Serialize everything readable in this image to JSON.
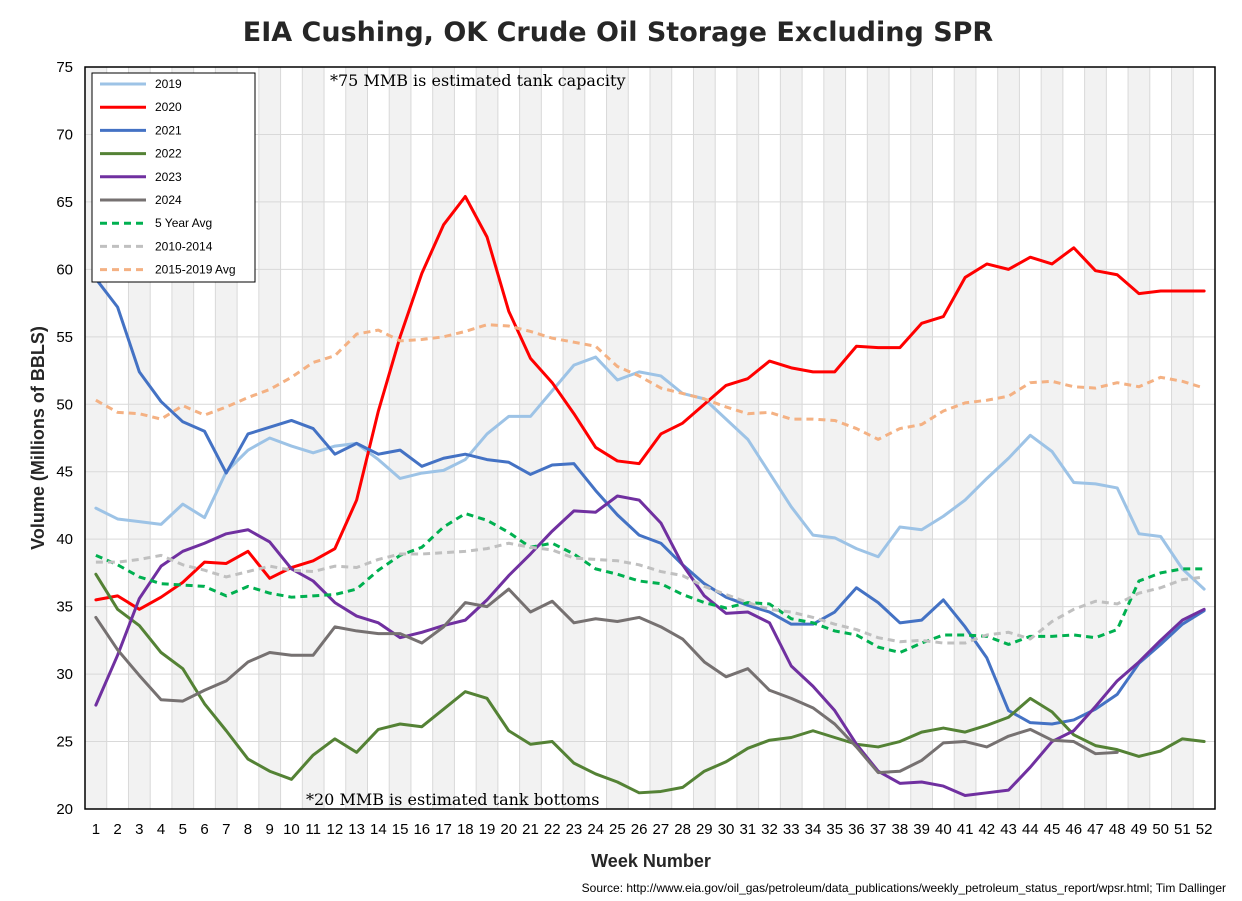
{
  "chart_data": {
    "type": "line",
    "title": "EIA Cushing, OK Crude Oil Storage Excluding SPR",
    "xlabel": "Week Number",
    "ylabel": "Volume (Millions of BBLS)",
    "xlim": [
      1,
      52
    ],
    "ylim": [
      20,
      75
    ],
    "yticks": [
      20,
      25,
      30,
      35,
      40,
      45,
      50,
      55,
      60,
      65,
      70,
      75
    ],
    "x": [
      1,
      2,
      3,
      4,
      5,
      6,
      7,
      8,
      9,
      10,
      11,
      12,
      13,
      14,
      15,
      16,
      17,
      18,
      19,
      20,
      21,
      22,
      23,
      24,
      25,
      26,
      27,
      28,
      29,
      30,
      31,
      32,
      33,
      34,
      35,
      36,
      37,
      38,
      39,
      40,
      41,
      42,
      43,
      44,
      45,
      46,
      47,
      48,
      49,
      50,
      51,
      52
    ],
    "grid": true,
    "legend_position": "top-left",
    "series": [
      {
        "name": "2019",
        "color": "#9dc3e6",
        "dash": "solid",
        "values": [
          42.3,
          41.5,
          41.3,
          41.1,
          42.6,
          41.6,
          45.0,
          46.6,
          47.5,
          46.9,
          46.4,
          46.9,
          47.1,
          45.9,
          44.5,
          44.9,
          45.1,
          45.9,
          47.8,
          49.1,
          49.1,
          51.0,
          52.9,
          53.5,
          51.8,
          52.4,
          52.1,
          50.8,
          50.4,
          48.9,
          47.4,
          44.9,
          42.4,
          40.3,
          40.1,
          39.3,
          38.7,
          40.9,
          40.7,
          41.7,
          42.9,
          44.5,
          46.0,
          47.7,
          46.5,
          44.2,
          44.1,
          43.8,
          40.4,
          40.2,
          37.8,
          36.3
        ]
      },
      {
        "name": "2020",
        "color": "#ff0000",
        "dash": "solid",
        "values": [
          35.5,
          35.8,
          34.8,
          35.7,
          36.8,
          38.3,
          38.2,
          39.1,
          37.1,
          37.9,
          38.4,
          39.3,
          42.9,
          49.5,
          55.0,
          59.7,
          63.3,
          65.4,
          62.4,
          56.9,
          53.4,
          51.6,
          49.3,
          46.8,
          45.8,
          45.6,
          47.8,
          48.6,
          50.0,
          51.4,
          51.9,
          53.2,
          52.7,
          52.4,
          52.4,
          54.3,
          54.2,
          54.2,
          56.0,
          56.5,
          59.4,
          60.4,
          60.0,
          60.9,
          60.4,
          61.6,
          59.9,
          59.6,
          58.2,
          58.4,
          58.4,
          58.4
        ]
      },
      {
        "name": "2021",
        "color": "#4472c4",
        "dash": "solid",
        "values": [
          59.3,
          57.2,
          52.4,
          50.2,
          48.7,
          48.0,
          44.9,
          47.8,
          48.3,
          48.8,
          48.2,
          46.3,
          47.1,
          46.3,
          46.6,
          45.4,
          46.0,
          46.3,
          45.9,
          45.7,
          44.8,
          45.5,
          45.6,
          43.6,
          41.8,
          40.3,
          39.7,
          38.1,
          36.7,
          35.7,
          35.1,
          34.6,
          33.7,
          33.7,
          34.6,
          36.4,
          35.3,
          33.8,
          34.0,
          35.5,
          33.5,
          31.2,
          27.3,
          26.4,
          26.3,
          26.6,
          27.4,
          28.5,
          30.8,
          32.2,
          33.7,
          34.7
        ]
      },
      {
        "name": "2022",
        "color": "#548235",
        "dash": "solid",
        "values": [
          37.4,
          34.8,
          33.6,
          31.6,
          30.4,
          27.8,
          25.8,
          23.7,
          22.8,
          22.2,
          24.0,
          25.2,
          24.2,
          25.9,
          26.3,
          26.1,
          27.4,
          28.7,
          28.2,
          25.8,
          24.8,
          25.0,
          23.4,
          22.6,
          22.0,
          21.2,
          21.3,
          21.6,
          22.8,
          23.5,
          24.5,
          25.1,
          25.3,
          25.8,
          25.3,
          24.8,
          24.6,
          25.0,
          25.7,
          26.0,
          25.7,
          26.2,
          26.8,
          28.2,
          27.2,
          25.5,
          24.7,
          24.4,
          23.9,
          24.3,
          25.2,
          25.0
        ]
      },
      {
        "name": "2023",
        "color": "#7030a0",
        "dash": "solid",
        "values": [
          27.7,
          31.4,
          35.6,
          38.0,
          39.1,
          39.7,
          40.4,
          40.7,
          39.8,
          37.8,
          36.9,
          35.3,
          34.3,
          33.8,
          32.7,
          33.1,
          33.6,
          34.0,
          35.5,
          37.3,
          38.9,
          40.6,
          42.1,
          42.0,
          43.2,
          42.9,
          41.2,
          38.1,
          35.8,
          34.5,
          34.6,
          33.8,
          30.6,
          29.1,
          27.3,
          24.8,
          22.8,
          21.9,
          22.0,
          21.7,
          21.0,
          21.2,
          21.4,
          23.1,
          25.0,
          25.8,
          27.6,
          29.5,
          30.9,
          32.5,
          34.0,
          34.8
        ]
      },
      {
        "name": "2024",
        "color": "#767171",
        "dash": "solid",
        "values": [
          34.2,
          31.8,
          29.9,
          28.1,
          28.0,
          28.8,
          29.5,
          30.9,
          31.6,
          31.4,
          31.4,
          33.5,
          33.2,
          33.0,
          33.0,
          32.3,
          33.5,
          35.3,
          35.0,
          36.3,
          34.6,
          35.4,
          33.8,
          34.1,
          33.9,
          34.2,
          33.5,
          32.6,
          30.9,
          29.8,
          30.4,
          28.8,
          28.2,
          27.5,
          26.3,
          24.6,
          22.7,
          22.8,
          23.6,
          24.9,
          25.0,
          24.6,
          25.4,
          25.9,
          25.1,
          25.0,
          24.1,
          24.2,
          null,
          null,
          null,
          null
        ]
      },
      {
        "name": "5 Year Avg",
        "color": "#00b050",
        "dash": "dashed",
        "values": [
          38.8,
          38.1,
          37.2,
          36.7,
          36.6,
          36.5,
          35.8,
          36.5,
          36.0,
          35.7,
          35.8,
          35.9,
          36.3,
          37.7,
          38.8,
          39.4,
          40.9,
          41.9,
          41.4,
          40.5,
          39.4,
          39.7,
          38.9,
          37.8,
          37.4,
          36.9,
          36.7,
          35.9,
          35.3,
          34.9,
          35.3,
          35.2,
          34.1,
          33.8,
          33.2,
          32.9,
          32.0,
          31.6,
          32.3,
          32.9,
          32.9,
          32.8,
          32.2,
          32.8,
          32.8,
          32.9,
          32.7,
          33.3,
          36.9,
          37.5,
          37.8,
          37.8
        ]
      },
      {
        "name": "2010-2014",
        "color": "#c0c0c0",
        "dash": "dashed",
        "values": [
          38.3,
          38.3,
          38.5,
          38.8,
          38.1,
          37.7,
          37.2,
          37.6,
          38.0,
          37.7,
          37.6,
          38.0,
          37.9,
          38.5,
          38.9,
          38.9,
          39.0,
          39.1,
          39.3,
          39.7,
          39.4,
          39.2,
          38.6,
          38.5,
          38.4,
          38.1,
          37.6,
          37.3,
          36.5,
          35.9,
          35.3,
          34.8,
          34.6,
          34.2,
          33.7,
          33.3,
          32.7,
          32.4,
          32.5,
          32.3,
          32.3,
          32.9,
          33.1,
          32.6,
          33.9,
          34.8,
          35.4,
          35.2,
          36.0,
          36.4,
          37.0,
          37.2
        ]
      },
      {
        "name": "2015-2019 Avg",
        "color": "#f4b183",
        "dash": "dashed",
        "values": [
          50.3,
          49.4,
          49.3,
          48.9,
          49.9,
          49.2,
          49.8,
          50.5,
          51.1,
          52.0,
          53.1,
          53.6,
          55.2,
          55.5,
          54.7,
          54.8,
          55.0,
          55.4,
          55.9,
          55.8,
          55.4,
          54.9,
          54.6,
          54.3,
          52.8,
          52.1,
          51.2,
          50.8,
          50.4,
          49.8,
          49.3,
          49.4,
          48.9,
          48.9,
          48.8,
          48.2,
          47.4,
          48.2,
          48.5,
          49.5,
          50.1,
          50.3,
          50.6,
          51.6,
          51.7,
          51.3,
          51.2,
          51.6,
          51.3,
          52.0,
          51.7,
          51.2
        ]
      }
    ],
    "annotations": [
      "*75 MMB is estimated tank capacity",
      "*20 MMB is estimated tank bottoms"
    ],
    "source": "Source: http://www.eia.gov/oil_gas/petroleum/data_publications/weekly_petroleum_status_report/wpsr.html; Tim Dallinger"
  }
}
